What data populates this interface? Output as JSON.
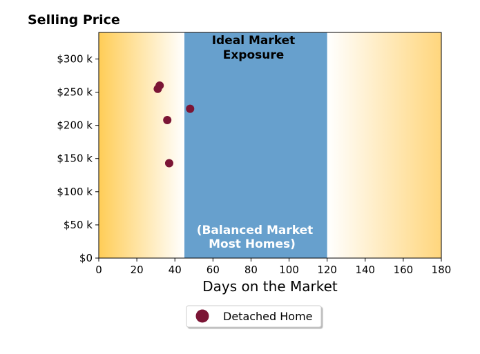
{
  "chart_data": {
    "type": "scatter",
    "title": "Selling Price",
    "xlabel": "Days on the Market",
    "ylabel": "",
    "xlim": [
      0,
      180
    ],
    "ylim": [
      0,
      340000
    ],
    "x_ticks": [
      0,
      20,
      40,
      60,
      80,
      100,
      120,
      140,
      160,
      180
    ],
    "x_tick_labels": [
      "0",
      "20",
      "40",
      "60",
      "80",
      "100",
      "120",
      "140",
      "160",
      "180"
    ],
    "y_ticks": [
      0,
      50000,
      100000,
      150000,
      200000,
      250000,
      300000
    ],
    "y_tick_labels": [
      "$0",
      "$50 k",
      "$100 k",
      "$150 k",
      "$200 k",
      "$250 k",
      "$300 k"
    ],
    "grid": false,
    "regions": [
      {
        "label": "Ideal Market Exposure",
        "x_start": 45,
        "x_end": 120,
        "color": "#67a0cd"
      }
    ],
    "region_bottom_label": "(Balanced Market Most Homes)",
    "background_gradient_color": "#ffcd57",
    "series": [
      {
        "name": "Detached Home",
        "color": "#7b1535",
        "points": [
          {
            "x": 31,
            "y": 255000
          },
          {
            "x": 32,
            "y": 260000
          },
          {
            "x": 36,
            "y": 208000
          },
          {
            "x": 37,
            "y": 143000
          },
          {
            "x": 48,
            "y": 225000
          }
        ]
      }
    ],
    "legend": "bottom-center"
  },
  "annotations": {
    "top_line1": "Ideal Market",
    "top_line2": "Exposure",
    "bottom_line1": "(Balanced Market",
    "bottom_line2": "Most Homes)"
  }
}
